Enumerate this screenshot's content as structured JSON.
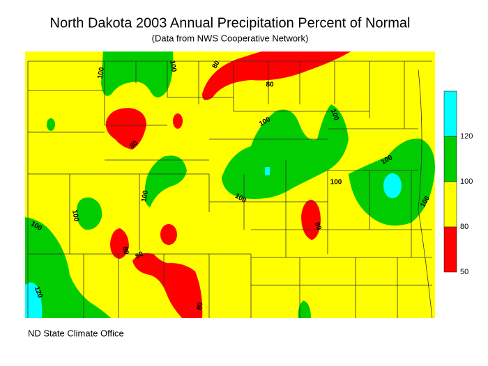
{
  "title": "North Dakota 2003 Annual Precipitation Percent of Normal",
  "subtitle": "(Data from NWS Cooperative Network)",
  "credit": "ND State Climate Office",
  "legend": {
    "ticks": [
      50,
      80,
      100,
      120
    ],
    "colors": [
      "#ff0000",
      "#ffff00",
      "#00cc00",
      "#00ffff"
    ]
  },
  "contour_labels": [
    100,
    100,
    80,
    80,
    80,
    100,
    100,
    100,
    100,
    100,
    100,
    100,
    100,
    100,
    80,
    80,
    80,
    120,
    80
  ]
}
